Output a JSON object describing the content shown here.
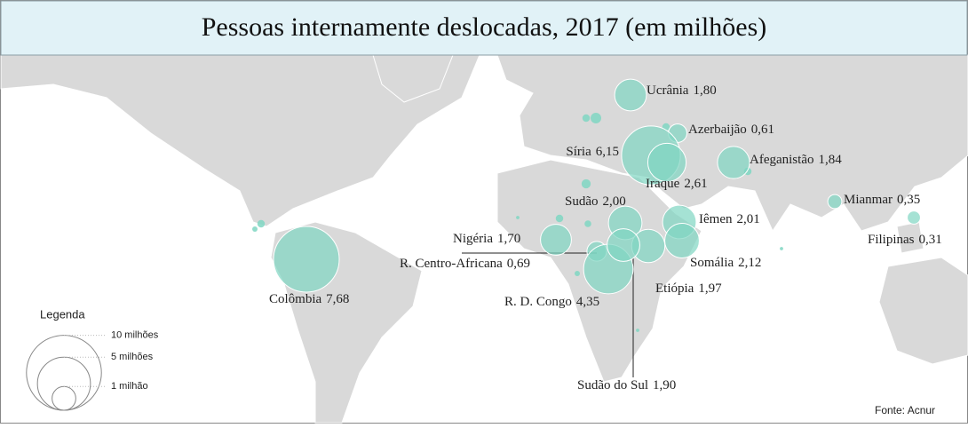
{
  "title": "Pessoas internamente deslocadas, 2017 (em milhões)",
  "bubbles": [
    {
      "name": "Ucrânia",
      "value": 1.8,
      "value_label": "1,80"
    },
    {
      "name": "Azerbaijão",
      "value": 0.61,
      "value_label": "0,61"
    },
    {
      "name": "Síria",
      "value": 6.15,
      "value_label": "6,15"
    },
    {
      "name": "Iraque",
      "value": 2.61,
      "value_label": "2,61"
    },
    {
      "name": "Afeganistão",
      "value": 1.84,
      "value_label": "1,84"
    },
    {
      "name": "Mianmar",
      "value": 0.35,
      "value_label": "0,35"
    },
    {
      "name": "Filipinas",
      "value": 0.31,
      "value_label": "0,31"
    },
    {
      "name": "Sudão",
      "value": 2.0,
      "value_label": "2,00"
    },
    {
      "name": "Iêmen",
      "value": 2.01,
      "value_label": "2,01"
    },
    {
      "name": "Somália",
      "value": 2.12,
      "value_label": "2,12"
    },
    {
      "name": "Etiópia",
      "value": 1.97,
      "value_label": "1,97"
    },
    {
      "name": "Nigéria",
      "value": 1.7,
      "value_label": "1,70"
    },
    {
      "name": "R. Centro-Africana",
      "value": 0.69,
      "value_label": "0,69"
    },
    {
      "name": "R. D. Congo",
      "value": 4.35,
      "value_label": "4,35"
    },
    {
      "name": "Sudão do Sul",
      "value": 1.9,
      "value_label": "1,90"
    },
    {
      "name": "Colômbia",
      "value": 7.68,
      "value_label": "7,68"
    }
  ],
  "unlabeled_values": [
    0.1,
    0.2,
    0.1,
    0.15,
    0.1,
    0.08,
    0.02,
    0.1,
    0.05,
    0.1,
    0.02,
    0.02,
    0.05
  ],
  "color": "#7fd6c2",
  "legend": {
    "title": "Legenda",
    "items": [
      {
        "value": 10,
        "label": "10 milhões"
      },
      {
        "value": 5,
        "label": "5 milhões"
      },
      {
        "value": 1,
        "label": "1 milhão"
      }
    ]
  },
  "source": "Fonte: Acnur"
}
